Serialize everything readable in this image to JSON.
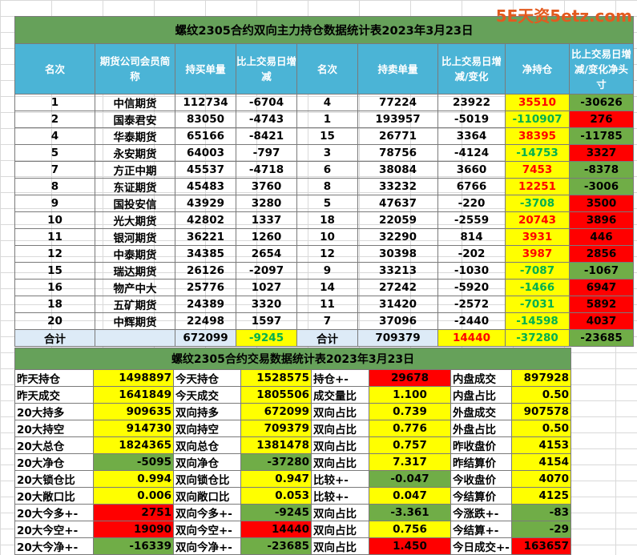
{
  "watermark": "5E天资5etz.com",
  "table1": {
    "title": "螺纹2305合约双向主力持仓数据统计表2023年3月23日",
    "headers": [
      "名次",
      "期货公司会员简称",
      "持买单量",
      "比上交易日增减",
      "名次",
      "持卖单量",
      "比上交易日增减/变化",
      "净持仓",
      "比上交易日增减/变化净头寸"
    ],
    "rows": [
      [
        "1",
        "中信期货",
        "112734",
        "-6704",
        "4",
        "77224",
        "23922",
        "35510",
        "-30626"
      ],
      [
        "2",
        "国泰君安",
        "83050",
        "-4743",
        "1",
        "193957",
        "-5019",
        "-110907",
        "276"
      ],
      [
        "4",
        "华泰期货",
        "65166",
        "-8421",
        "15",
        "26771",
        "3364",
        "38395",
        "-11785"
      ],
      [
        "5",
        "永安期货",
        "64003",
        "-797",
        "3",
        "78756",
        "-4124",
        "-14753",
        "3327"
      ],
      [
        "7",
        "方正中期",
        "45537",
        "-4718",
        "6",
        "38084",
        "3660",
        "7453",
        "-8378"
      ],
      [
        "8",
        "东证期货",
        "45483",
        "3760",
        "8",
        "33232",
        "6766",
        "12251",
        "-3006"
      ],
      [
        "9",
        "国投安信",
        "43929",
        "3280",
        "5",
        "47637",
        "-220",
        "-3708",
        "3500"
      ],
      [
        "10",
        "光大期货",
        "42802",
        "1337",
        "18",
        "22059",
        "-2559",
        "20743",
        "3896"
      ],
      [
        "11",
        "银河期货",
        "36221",
        "1260",
        "10",
        "32290",
        "814",
        "3931",
        "446"
      ],
      [
        "12",
        "中泰期货",
        "34385",
        "2654",
        "12",
        "30398",
        "-202",
        "3987",
        "2856"
      ],
      [
        "15",
        "瑞达期货",
        "26126",
        "-2097",
        "9",
        "33213",
        "-1030",
        "-7087",
        "-1067"
      ],
      [
        "16",
        "物产中大",
        "25776",
        "1027",
        "14",
        "27242",
        "-5920",
        "-1466",
        "6947"
      ],
      [
        "18",
        "五矿期货",
        "24389",
        "3320",
        "11",
        "31420",
        "-2572",
        "-7031",
        "5892"
      ],
      [
        "20",
        "中辉期货",
        "22498",
        "1597",
        "7",
        "37096",
        "-2440",
        "-14598",
        "4037"
      ]
    ],
    "total": [
      "合计",
      "",
      "672099",
      "-9245",
      "合计",
      "709379",
      "14440",
      "-37280",
      "-23685"
    ]
  },
  "table2": {
    "title": "螺纹2305合约交易数据统计表2023年3月23日",
    "rows": [
      [
        "昨天持仓",
        "1498897",
        "今天持仓",
        "1528575",
        "持仓+-",
        "29678",
        "内盘成交",
        "897928"
      ],
      [
        "昨天成交",
        "1641849",
        "今天成交",
        "1805506",
        "成交量比",
        "1.100",
        "内盘占比",
        "0.50"
      ],
      [
        "20大持多",
        "909635",
        "双向持多",
        "672099",
        "双向占比",
        "0.739",
        "外盘成交",
        "907578"
      ],
      [
        "20大持空",
        "914730",
        "双向持空",
        "709379",
        "双向占比",
        "0.776",
        "外盘占比",
        "0.50"
      ],
      [
        "20大总仓",
        "1824365",
        "双向总仓",
        "1381478",
        "双向占比",
        "0.757",
        "昨收盘价",
        "4153"
      ],
      [
        "20大净仓",
        "-5095",
        "双向净仓",
        "-37280",
        "双向占比",
        "7.317",
        "昨结算价",
        "4154"
      ],
      [
        "20大锁仓比",
        "0.994",
        "双向锁仓比",
        "0.947",
        "比较+-",
        "-0.047",
        "今收盘价",
        "4070"
      ],
      [
        "20大敞口比",
        "0.006",
        "双向敞口比",
        "0.053",
        "比较+-",
        "0.047",
        "今结算价",
        "4125"
      ],
      [
        "20大今多+-",
        "2751",
        "双向今多+-",
        "-9245",
        "双向占比",
        "-3.361",
        "今涨跌+-",
        "-83"
      ],
      [
        "20大今空+-",
        "19090",
        "双向今空+-",
        "14440",
        "双向占比",
        "0.756",
        "今结算+-",
        "-29"
      ],
      [
        "20大今净+-",
        "-16339",
        "双向今净+-",
        "-23685",
        "双向占比",
        "1.450",
        "今日成交+-",
        "163657"
      ]
    ]
  },
  "colors": {
    "title_bg": "#66a15a",
    "header_bg": "#4bb4d6",
    "yellow": "#ffff00",
    "red": "#ff0000",
    "green": "#70ad47",
    "light_blue": "#ddebf7"
  }
}
